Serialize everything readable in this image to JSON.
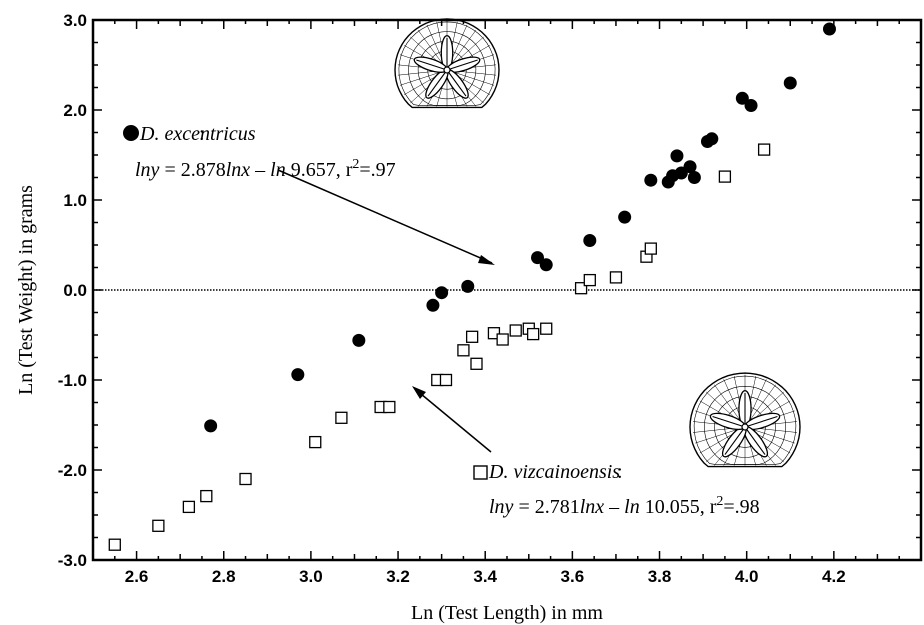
{
  "chart_data": {
    "type": "scatter",
    "xlabel": "Ln (Test Length) in mm",
    "ylabel": "Ln (Test Weight) in grams",
    "xlim": [
      2.5,
      4.4
    ],
    "ylim": [
      -3.0,
      3.0
    ],
    "x_ticks": [
      "2.6",
      "2.8",
      "3.0",
      "3.2",
      "3.4",
      "3.6",
      "3.8",
      "4.0",
      "4.2"
    ],
    "x_tick_values": [
      2.6,
      2.8,
      3.0,
      3.2,
      3.4,
      3.6,
      3.8,
      4.0,
      4.2
    ],
    "y_ticks": [
      "3.0",
      "2.0",
      "1.0",
      "0.0",
      "-1.0",
      "-2.0",
      "-3.0"
    ],
    "y_tick_values": [
      3.0,
      2.0,
      1.0,
      0.0,
      -1.0,
      -2.0,
      -3.0
    ],
    "grid": false,
    "zero_line": true,
    "series": [
      {
        "name": "D. excentricus",
        "marker": "filled-circle",
        "color": "#000000",
        "fit": {
          "slope": 2.878,
          "intercept_ln": 9.657,
          "style": "solid",
          "x_range": [
            2.5,
            4.4
          ]
        },
        "points": [
          [
            2.77,
            -1.51
          ],
          [
            2.97,
            -0.94
          ],
          [
            3.11,
            -0.56
          ],
          [
            3.28,
            -0.17
          ],
          [
            3.3,
            -0.03
          ],
          [
            3.36,
            0.04
          ],
          [
            3.52,
            0.36
          ],
          [
            3.54,
            0.28
          ],
          [
            3.64,
            0.55
          ],
          [
            3.72,
            0.81
          ],
          [
            3.78,
            1.22
          ],
          [
            3.82,
            1.2
          ],
          [
            3.83,
            1.27
          ],
          [
            3.84,
            1.49
          ],
          [
            3.85,
            1.3
          ],
          [
            3.87,
            1.37
          ],
          [
            3.88,
            1.25
          ],
          [
            3.91,
            1.65
          ],
          [
            3.92,
            1.68
          ],
          [
            3.99,
            2.13
          ],
          [
            4.01,
            2.05
          ],
          [
            4.1,
            2.3
          ],
          [
            4.19,
            2.9
          ]
        ]
      },
      {
        "name": "D. vizcainoensis",
        "marker": "open-square",
        "color": "#000000",
        "fit": {
          "slope": 2.781,
          "intercept_ln": 10.055,
          "style": "dashed",
          "x_range": [
            2.575,
            4.4
          ]
        },
        "points": [
          [
            2.55,
            -2.83
          ],
          [
            2.65,
            -2.62
          ],
          [
            2.72,
            -2.41
          ],
          [
            2.76,
            -2.29
          ],
          [
            2.85,
            -2.1
          ],
          [
            3.01,
            -1.69
          ],
          [
            3.07,
            -1.42
          ],
          [
            3.16,
            -1.3
          ],
          [
            3.18,
            -1.3
          ],
          [
            3.29,
            -1.0
          ],
          [
            3.31,
            -1.0
          ],
          [
            3.35,
            -0.67
          ],
          [
            3.37,
            -0.52
          ],
          [
            3.38,
            -0.82
          ],
          [
            3.42,
            -0.48
          ],
          [
            3.44,
            -0.55
          ],
          [
            3.47,
            -0.45
          ],
          [
            3.5,
            -0.43
          ],
          [
            3.51,
            -0.49
          ],
          [
            3.54,
            -0.43
          ],
          [
            3.62,
            0.02
          ],
          [
            3.64,
            0.11
          ],
          [
            3.7,
            0.14
          ],
          [
            3.77,
            0.37
          ],
          [
            3.78,
            0.46
          ],
          [
            3.95,
            1.26
          ],
          [
            4.04,
            1.56
          ]
        ]
      }
    ],
    "annotations": [
      {
        "species": "D. excentricus",
        "equation_parts": [
          "lny",
          " = 2.878",
          "lnx",
          " – ",
          "ln",
          " 9.657, r",
          "2",
          "=.97"
        ]
      },
      {
        "species": "D. vizcainoensis",
        "equation_parts": [
          "lny",
          " = 2.781",
          "lnx",
          " – ",
          "ln",
          " 10.055, r",
          "2",
          "=.98"
        ]
      }
    ]
  }
}
